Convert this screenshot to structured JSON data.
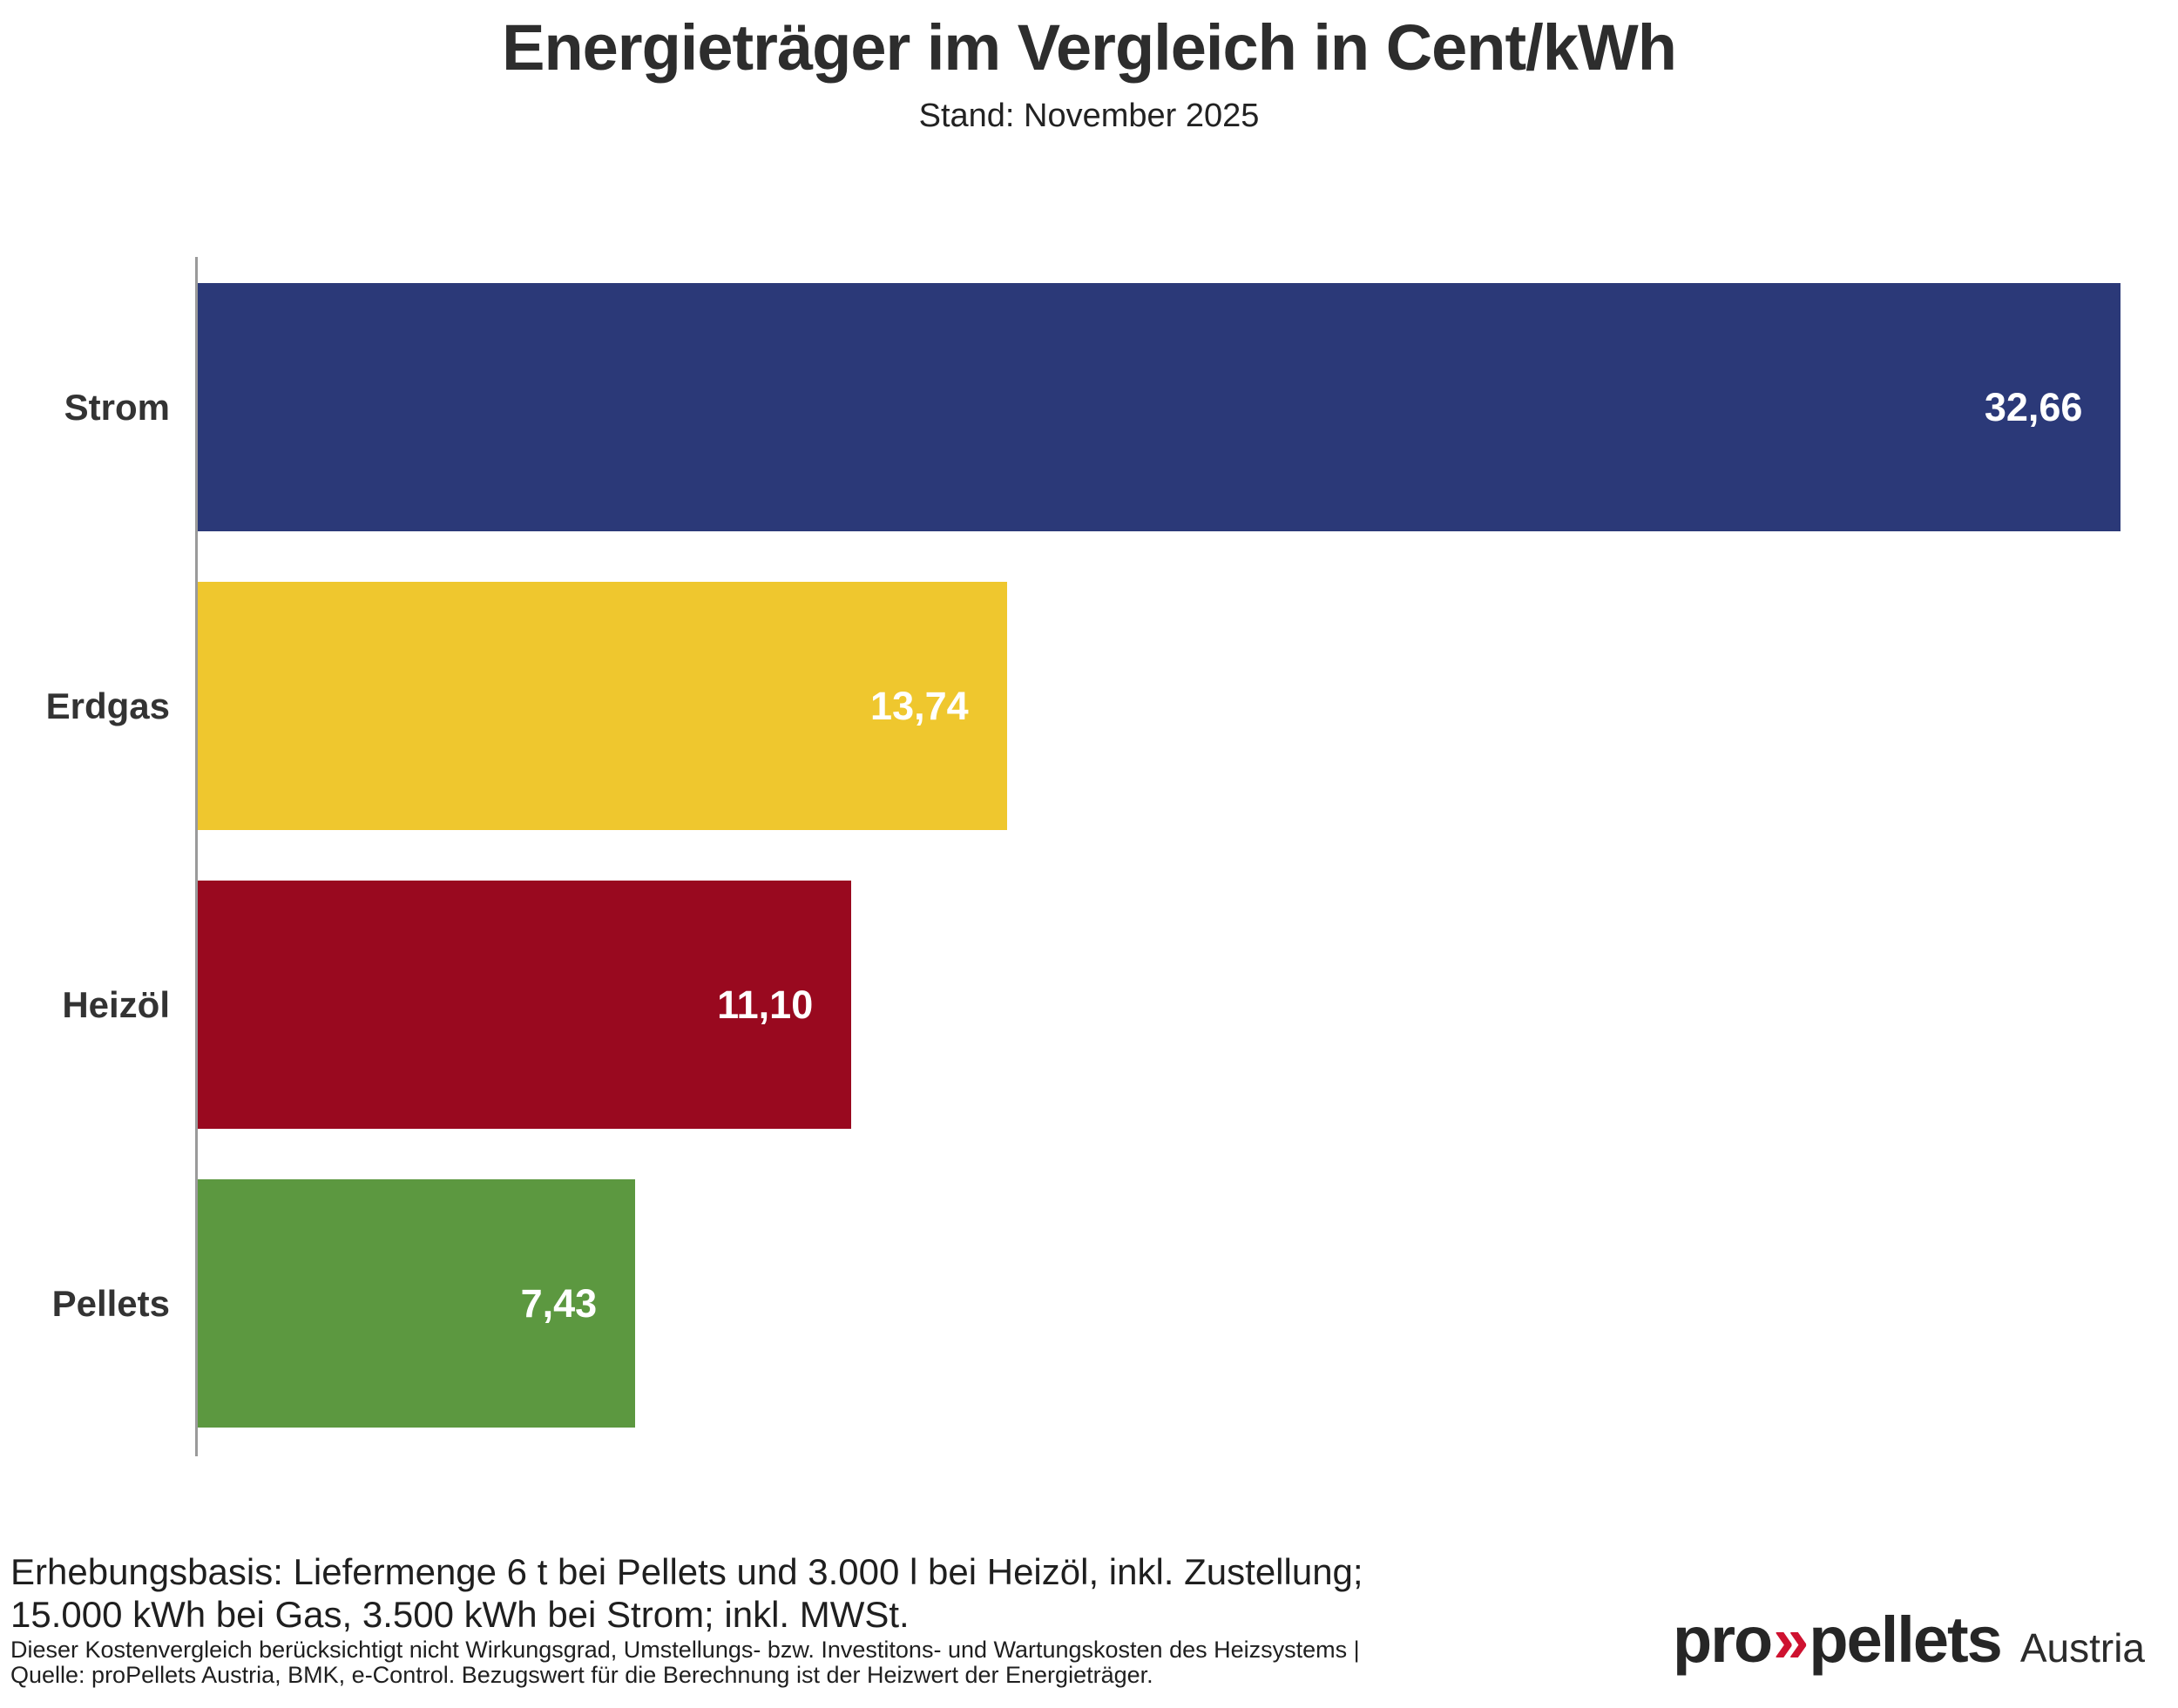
{
  "title": "Energieträger im Vergleich in Cent/kWh",
  "subtitle": "Stand: November 2025",
  "chart_data": {
    "type": "bar",
    "orientation": "horizontal",
    "title": "Energieträger im Vergleich in Cent/kWh",
    "subtitle": "Stand: November 2025",
    "categories": [
      "Strom",
      "Erdgas",
      "Heizöl",
      "Pellets"
    ],
    "values": [
      32.66,
      13.74,
      11.1,
      7.43
    ],
    "value_labels": [
      "32,66",
      "13,74",
      "11,10",
      "7,43"
    ],
    "bar_colors": [
      "#2b3978",
      "#efc72e",
      "#99091f",
      "#5c9840"
    ],
    "xlabel": "",
    "ylabel": "",
    "xlim": [
      0,
      33.6
    ],
    "grid": false,
    "legend": false,
    "value_label_position": "inside-right",
    "value_text_color": "#ffffff",
    "axis_line_color": "#9a9a9a"
  },
  "footer": {
    "line1": "Erhebungsbasis: Liefermenge 6 t bei Pellets und 3.000 l bei Heizöl, inkl. Zustellung;",
    "line2": "15.000 kWh bei Gas, 3.500 kWh bei Strom; inkl. MWSt.",
    "note1": "Dieser Kostenvergleich berücksichtigt nicht Wirkungsgrad, Umstellungs- bzw. Investitons- und Wartungskosten des Heizsystems |",
    "note2": "Quelle: proPellets Austria, BMK, e-Control. Bezugswert für die Berechnung ist der Heizwert der Energieträger."
  },
  "logo": {
    "part1": "pro",
    "chevrons": "»",
    "part2": "pellets",
    "suffix": "Austria",
    "chevron_color": "#ce1230",
    "text_color": "#262626"
  }
}
